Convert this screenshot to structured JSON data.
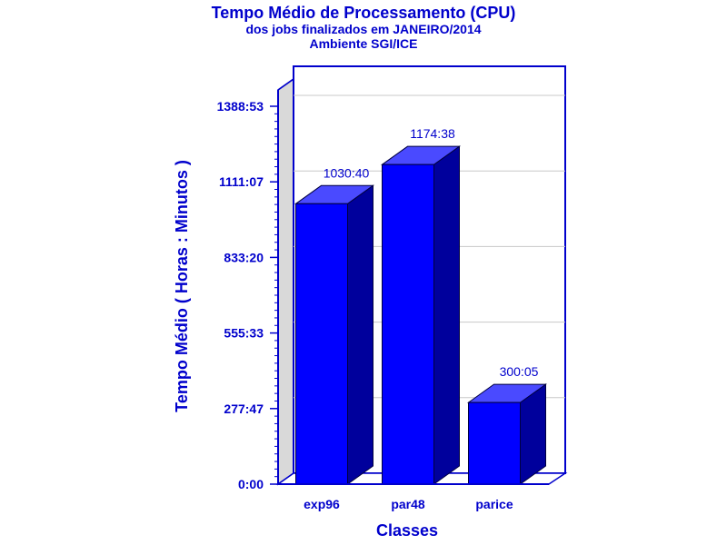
{
  "colors": {
    "text": "#0000cc",
    "frame": "#0000cc",
    "bar_front": "#0000ff",
    "bar_top": "#4a4aff",
    "bar_side": "#00009c",
    "back_wall": "#d9d9d9",
    "grid": "#c8c8c8"
  },
  "chart_data": {
    "type": "bar",
    "title": "Tempo Médio de Processamento (CPU)",
    "subtitle": "dos jobs finalizados em JANEIRO/2014",
    "subtitle2": "Ambiente SGI/ICE",
    "xlabel": "Classes",
    "ylabel": "Tempo Médio ( Horas : Minutos )",
    "categories": [
      "exp96",
      "par48",
      "parice"
    ],
    "values": [
      61840,
      70478,
      18005
    ],
    "value_labels": [
      "1030:40",
      "1174:38",
      "300:05"
    ],
    "y_unit": "minutes",
    "ylim": [
      0,
      83333
    ],
    "y_tick_values": [
      0,
      16667,
      33333,
      50000,
      66667,
      83333
    ],
    "y_tick_labels": [
      "0:00",
      "277:47",
      "555:33",
      "833:20",
      "1111:07",
      "1388:53"
    ],
    "grid": true,
    "three_d": true
  }
}
